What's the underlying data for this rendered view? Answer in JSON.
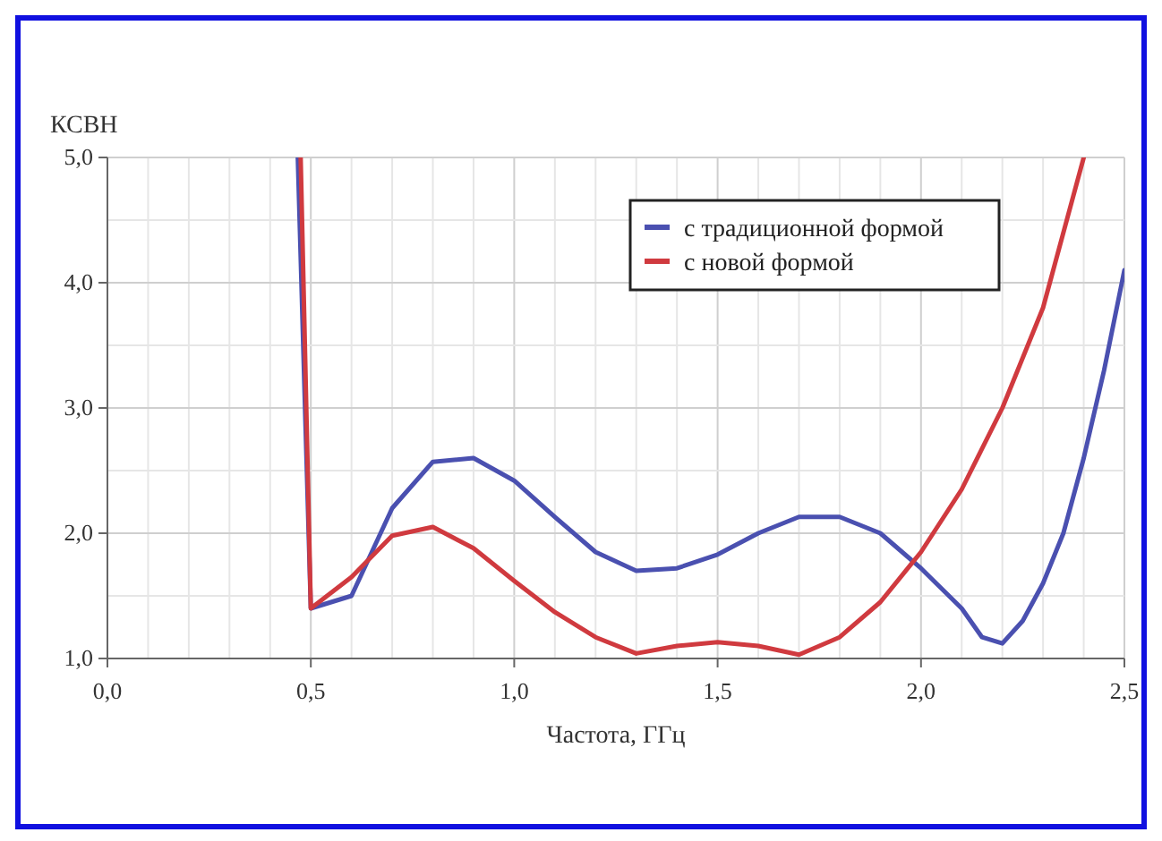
{
  "chart_data": {
    "type": "line",
    "xlabel": "Частота, ГГц",
    "ylabel": "КСВН",
    "xlim": [
      0,
      2.5
    ],
    "ylim": [
      1,
      5
    ],
    "xticks": [
      {
        "value": 0,
        "label": "0,0"
      },
      {
        "value": 0.5,
        "label": "0,5"
      },
      {
        "value": 1,
        "label": "1,0"
      },
      {
        "value": 1.5,
        "label": "1,5"
      },
      {
        "value": 2,
        "label": "2,0"
      },
      {
        "value": 2.5,
        "label": "2,5"
      }
    ],
    "yticks": [
      {
        "value": 1,
        "label": "1,0"
      },
      {
        "value": 2,
        "label": "2,0"
      },
      {
        "value": 3,
        "label": "3,0"
      },
      {
        "value": 4,
        "label": "4,0"
      },
      {
        "value": 5,
        "label": "5,0"
      }
    ],
    "grid": true,
    "legend": "top right",
    "marker": "none",
    "line_style": "solid",
    "series": [
      {
        "name": "с традиционной формой",
        "color": "#4a50b0",
        "x": [
          0.468,
          0.5,
          0.6,
          0.7,
          0.8,
          0.9,
          1.0,
          1.1,
          1.2,
          1.3,
          1.4,
          1.5,
          1.6,
          1.7,
          1.8,
          1.9,
          2.0,
          2.1,
          2.15,
          2.2,
          2.25,
          2.3,
          2.35,
          2.4,
          2.45,
          2.5
        ],
        "values": [
          5.0,
          1.4,
          1.5,
          2.2,
          2.57,
          2.6,
          2.42,
          2.13,
          1.85,
          1.7,
          1.72,
          1.83,
          2.0,
          2.13,
          2.13,
          2.0,
          1.72,
          1.4,
          1.17,
          1.12,
          1.3,
          1.6,
          2.0,
          2.6,
          3.3,
          4.1
        ]
      },
      {
        "name": "с новой формой",
        "color": "#d03a3f",
        "x": [
          0.475,
          0.5,
          0.6,
          0.7,
          0.8,
          0.9,
          1.0,
          1.1,
          1.2,
          1.3,
          1.4,
          1.5,
          1.6,
          1.7,
          1.8,
          1.9,
          2.0,
          2.1,
          2.2,
          2.3,
          2.4
        ],
        "values": [
          5.0,
          1.4,
          1.65,
          1.98,
          2.05,
          1.88,
          1.62,
          1.37,
          1.17,
          1.04,
          1.1,
          1.13,
          1.1,
          1.03,
          1.17,
          1.45,
          1.85,
          2.35,
          3.0,
          3.8,
          5.0
        ]
      }
    ]
  }
}
